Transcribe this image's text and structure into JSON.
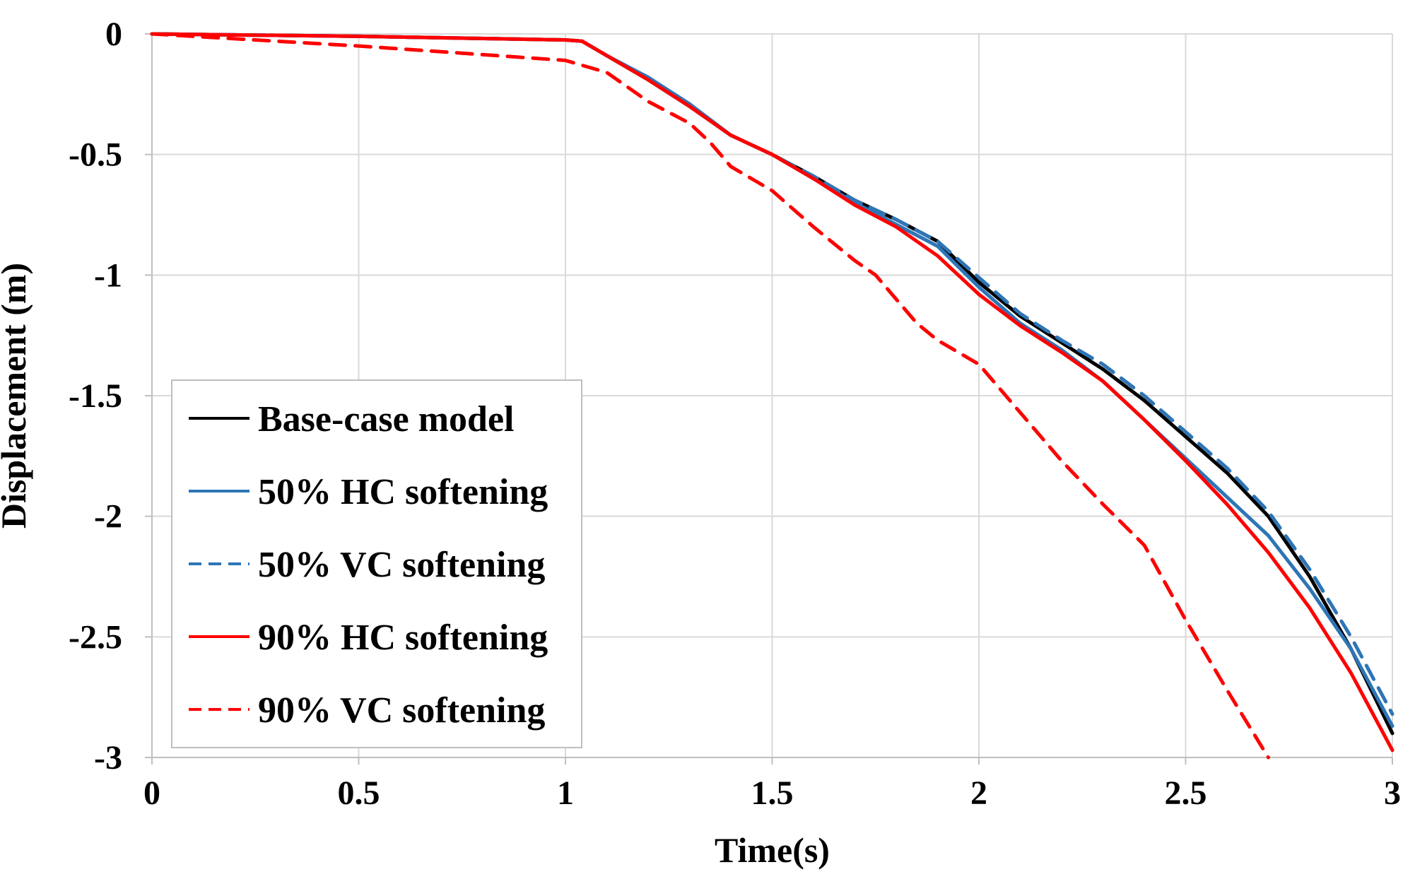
{
  "chart_data": {
    "type": "line",
    "title": "",
    "xlabel": "Time(s)",
    "ylabel": "Displacement (m)",
    "xlim": [
      0,
      3
    ],
    "ylim": [
      -3,
      0
    ],
    "grid": true,
    "legend_position": "bottom-left",
    "x_ticks": [
      {
        "value": 0,
        "label": "0"
      },
      {
        "value": 0.5,
        "label": "0.5"
      },
      {
        "value": 1,
        "label": "1"
      },
      {
        "value": 1.5,
        "label": "1.5"
      },
      {
        "value": 2,
        "label": "2"
      },
      {
        "value": 2.5,
        "label": "2.5"
      },
      {
        "value": 3,
        "label": "3"
      }
    ],
    "y_ticks": [
      {
        "value": 0,
        "label": "0"
      },
      {
        "value": -0.5,
        "label": "-0.5"
      },
      {
        "value": -1,
        "label": "-1"
      },
      {
        "value": -1.5,
        "label": "-1.5"
      },
      {
        "value": -2,
        "label": "-2"
      },
      {
        "value": -2.5,
        "label": "-2.5"
      },
      {
        "value": -3,
        "label": "-3"
      }
    ],
    "series": [
      {
        "key": "base-case",
        "name": "Base-case model",
        "color": "#000000",
        "dash": "solid",
        "x": [
          0,
          0.5,
          1.0,
          1.04,
          1.1,
          1.2,
          1.3,
          1.4,
          1.5,
          1.6,
          1.7,
          1.8,
          1.9,
          2.0,
          2.1,
          2.2,
          2.3,
          2.4,
          2.5,
          2.6,
          2.7,
          2.8,
          2.9,
          3.0
        ],
        "y": [
          0,
          -0.01,
          -0.025,
          -0.03,
          -0.09,
          -0.19,
          -0.3,
          -0.42,
          -0.5,
          -0.59,
          -0.69,
          -0.77,
          -0.86,
          -1.03,
          -1.17,
          -1.28,
          -1.39,
          -1.52,
          -1.67,
          -1.82,
          -2.0,
          -2.25,
          -2.55,
          -2.9
        ]
      },
      {
        "key": "hc50",
        "name": "50% HC softening",
        "color": "#2e75b6",
        "dash": "solid",
        "x": [
          0,
          0.5,
          1.0,
          1.04,
          1.1,
          1.2,
          1.3,
          1.4,
          1.5,
          1.6,
          1.7,
          1.8,
          1.9,
          2.0,
          2.1,
          2.2,
          2.3,
          2.4,
          2.5,
          2.6,
          2.7,
          2.8,
          2.9,
          3.0
        ],
        "y": [
          0,
          -0.01,
          -0.025,
          -0.03,
          -0.09,
          -0.18,
          -0.29,
          -0.42,
          -0.5,
          -0.6,
          -0.7,
          -0.79,
          -0.88,
          -1.05,
          -1.2,
          -1.31,
          -1.44,
          -1.6,
          -1.76,
          -1.92,
          -2.08,
          -2.3,
          -2.55,
          -2.87
        ]
      },
      {
        "key": "vc50",
        "name": "50% VC softening",
        "color": "#2e75b6",
        "dash": "dashed",
        "x": [
          0,
          0.5,
          1.0,
          1.04,
          1.1,
          1.2,
          1.3,
          1.4,
          1.5,
          1.6,
          1.7,
          1.8,
          1.9,
          2.0,
          2.1,
          2.2,
          2.3,
          2.4,
          2.5,
          2.6,
          2.7,
          2.8,
          2.9,
          3.0
        ],
        "y": [
          0,
          -0.01,
          -0.025,
          -0.03,
          -0.09,
          -0.19,
          -0.3,
          -0.42,
          -0.5,
          -0.59,
          -0.69,
          -0.77,
          -0.86,
          -1.01,
          -1.16,
          -1.27,
          -1.37,
          -1.5,
          -1.65,
          -1.8,
          -1.98,
          -2.22,
          -2.5,
          -2.82
        ]
      },
      {
        "key": "hc90",
        "name": "90% HC softening",
        "color": "#ff0000",
        "dash": "solid",
        "x": [
          0,
          0.5,
          1.0,
          1.04,
          1.1,
          1.2,
          1.3,
          1.4,
          1.5,
          1.6,
          1.7,
          1.8,
          1.9,
          2.0,
          2.1,
          2.2,
          2.3,
          2.4,
          2.5,
          2.6,
          2.7,
          2.8,
          2.9,
          3.0
        ],
        "y": [
          0,
          -0.01,
          -0.025,
          -0.03,
          -0.09,
          -0.19,
          -0.3,
          -0.42,
          -0.5,
          -0.6,
          -0.71,
          -0.8,
          -0.92,
          -1.08,
          -1.21,
          -1.32,
          -1.44,
          -1.6,
          -1.77,
          -1.95,
          -2.15,
          -2.38,
          -2.65,
          -2.97
        ]
      },
      {
        "key": "vc90",
        "name": "90% VC softening",
        "color": "#ff0000",
        "dash": "dashed",
        "x": [
          0,
          0.5,
          1.0,
          1.1,
          1.2,
          1.3,
          1.35,
          1.4,
          1.5,
          1.6,
          1.7,
          1.75,
          1.8,
          1.85,
          1.9,
          2.0,
          2.1,
          2.2,
          2.3,
          2.4,
          2.5,
          2.6,
          2.7
        ],
        "y": [
          0,
          -0.05,
          -0.11,
          -0.16,
          -0.28,
          -0.37,
          -0.45,
          -0.55,
          -0.65,
          -0.8,
          -0.94,
          -1.0,
          -1.1,
          -1.2,
          -1.27,
          -1.37,
          -1.57,
          -1.77,
          -1.95,
          -2.12,
          -2.43,
          -2.72,
          -3.0
        ]
      }
    ]
  }
}
